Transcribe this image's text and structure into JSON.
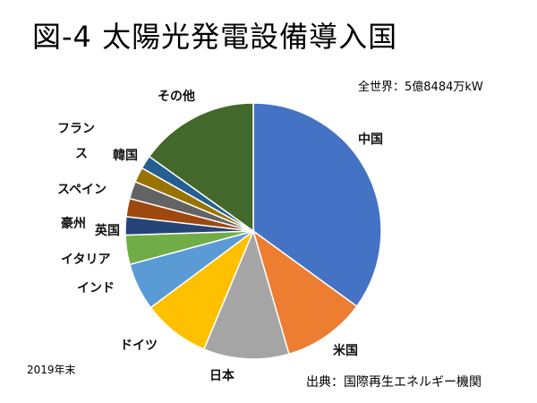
{
  "title": "図-4 太陽光発電設備導入国",
  "total_label": "全世界：5億8484万kW",
  "note": "2019年末",
  "source": "出典：国際再生エネルギー機関",
  "chart_data": {
    "type": "pie",
    "start_angle_deg": 0,
    "direction": "clockwise",
    "slices": [
      {
        "label": "中国",
        "value": 35.0,
        "color": "#4472C4"
      },
      {
        "label": "米国",
        "value": 10.5,
        "color": "#ED7D31"
      },
      {
        "label": "日本",
        "value": 10.8,
        "color": "#A5A5A5"
      },
      {
        "label": "ドイツ",
        "value": 8.5,
        "color": "#FFC000"
      },
      {
        "label": "インド",
        "value": 6.0,
        "color": "#5B9BD5"
      },
      {
        "label": "イタリア",
        "value": 3.7,
        "color": "#70AD47"
      },
      {
        "label": "英国",
        "value": 2.3,
        "color": "#264478"
      },
      {
        "label": "豪州",
        "value": 2.3,
        "color": "#9E480E"
      },
      {
        "label": "スペイン",
        "value": 2.2,
        "color": "#636363"
      },
      {
        "label": "韓国",
        "value": 1.9,
        "color": "#997300"
      },
      {
        "label": "フランス",
        "value": 1.7,
        "color": "#255E91"
      },
      {
        "label": "その他",
        "value": 15.1,
        "color": "#43682B"
      }
    ]
  }
}
